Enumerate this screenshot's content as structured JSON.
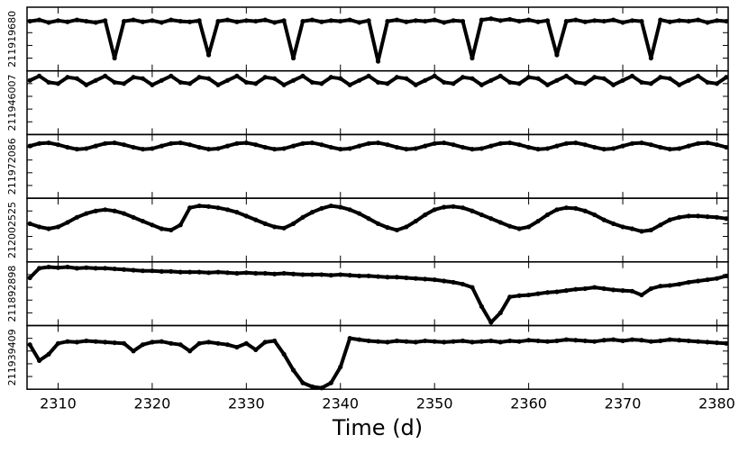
{
  "chart_data": [
    {
      "type": "line",
      "y_label": "211919680",
      "color": "#000000",
      "xlim": [
        2306.7,
        2381.2
      ],
      "ylim": [
        0,
        1
      ],
      "xticks": [
        2310,
        2320,
        2330,
        2340,
        2350,
        2360,
        2370,
        2380
      ],
      "yticks": [
        0.2,
        0.4,
        0.6,
        0.8
      ],
      "x": [
        2307,
        2308,
        2309,
        2310,
        2311,
        2312,
        2313,
        2314,
        2315,
        2316,
        2317,
        2318,
        2319,
        2320,
        2321,
        2322,
        2323,
        2324,
        2325,
        2326,
        2327,
        2328,
        2329,
        2330,
        2331,
        2332,
        2333,
        2334,
        2335,
        2336,
        2337,
        2338,
        2339,
        2340,
        2341,
        2342,
        2343,
        2344,
        2345,
        2346,
        2347,
        2348,
        2349,
        2350,
        2351,
        2352,
        2353,
        2354,
        2355,
        2356,
        2357,
        2358,
        2359,
        2360,
        2361,
        2362,
        2363,
        2364,
        2365,
        2366,
        2367,
        2368,
        2369,
        2370,
        2371,
        2372,
        2373,
        2374,
        2375,
        2376,
        2377,
        2378,
        2379,
        2380,
        2381
      ],
      "values": [
        0.78,
        0.8,
        0.76,
        0.79,
        0.77,
        0.8,
        0.78,
        0.76,
        0.79,
        0.2,
        0.78,
        0.8,
        0.77,
        0.79,
        0.76,
        0.8,
        0.78,
        0.77,
        0.79,
        0.25,
        0.78,
        0.8,
        0.77,
        0.79,
        0.78,
        0.8,
        0.76,
        0.79,
        0.2,
        0.78,
        0.8,
        0.77,
        0.79,
        0.78,
        0.8,
        0.76,
        0.79,
        0.15,
        0.78,
        0.8,
        0.77,
        0.79,
        0.78,
        0.8,
        0.76,
        0.79,
        0.78,
        0.2,
        0.8,
        0.82,
        0.79,
        0.81,
        0.78,
        0.8,
        0.77,
        0.79,
        0.25,
        0.78,
        0.8,
        0.77,
        0.79,
        0.78,
        0.8,
        0.76,
        0.79,
        0.78,
        0.2,
        0.8,
        0.77,
        0.79,
        0.78,
        0.8,
        0.76,
        0.79,
        0.78
      ]
    },
    {
      "type": "line",
      "y_label": "211946007",
      "color": "#000000",
      "xlim": [
        2306.7,
        2381.2
      ],
      "ylim": [
        0,
        1
      ],
      "xticks": [
        2310,
        2320,
        2330,
        2340,
        2350,
        2360,
        2370,
        2380
      ],
      "yticks": [
        0.2,
        0.4,
        0.6,
        0.8
      ],
      "x": [
        2307,
        2308,
        2309,
        2310,
        2311,
        2312,
        2313,
        2314,
        2315,
        2316,
        2317,
        2318,
        2319,
        2320,
        2321,
        2322,
        2323,
        2324,
        2325,
        2326,
        2327,
        2328,
        2329,
        2330,
        2331,
        2332,
        2333,
        2334,
        2335,
        2336,
        2337,
        2338,
        2339,
        2340,
        2341,
        2342,
        2343,
        2344,
        2345,
        2346,
        2347,
        2348,
        2349,
        2350,
        2351,
        2352,
        2353,
        2354,
        2355,
        2356,
        2357,
        2358,
        2359,
        2360,
        2361,
        2362,
        2363,
        2364,
        2365,
        2366,
        2367,
        2368,
        2369,
        2370,
        2371,
        2372,
        2373,
        2374,
        2375,
        2376,
        2377,
        2378,
        2379,
        2380,
        2381
      ],
      "values": [
        0.85,
        0.92,
        0.82,
        0.8,
        0.9,
        0.88,
        0.78,
        0.85,
        0.92,
        0.82,
        0.8,
        0.9,
        0.88,
        0.78,
        0.85,
        0.92,
        0.82,
        0.8,
        0.9,
        0.88,
        0.78,
        0.85,
        0.92,
        0.82,
        0.8,
        0.9,
        0.88,
        0.78,
        0.85,
        0.92,
        0.82,
        0.8,
        0.9,
        0.88,
        0.78,
        0.85,
        0.92,
        0.82,
        0.8,
        0.9,
        0.88,
        0.78,
        0.85,
        0.92,
        0.82,
        0.8,
        0.9,
        0.88,
        0.78,
        0.85,
        0.92,
        0.82,
        0.8,
        0.9,
        0.88,
        0.78,
        0.85,
        0.92,
        0.82,
        0.8,
        0.9,
        0.88,
        0.78,
        0.85,
        0.92,
        0.82,
        0.8,
        0.9,
        0.88,
        0.78,
        0.85,
        0.92,
        0.82,
        0.8,
        0.9
      ]
    },
    {
      "type": "line",
      "y_label": "211972086",
      "color": "#000000",
      "xlim": [
        2306.7,
        2381.2
      ],
      "ylim": [
        0,
        1
      ],
      "xticks": [
        2310,
        2320,
        2330,
        2340,
        2350,
        2360,
        2370,
        2380
      ],
      "yticks": [
        0.2,
        0.4,
        0.6,
        0.8
      ],
      "x": [
        2307,
        2308,
        2309,
        2310,
        2311,
        2312,
        2313,
        2314,
        2315,
        2316,
        2317,
        2318,
        2319,
        2320,
        2321,
        2322,
        2323,
        2324,
        2325,
        2326,
        2327,
        2328,
        2329,
        2330,
        2331,
        2332,
        2333,
        2334,
        2335,
        2336,
        2337,
        2338,
        2339,
        2340,
        2341,
        2342,
        2343,
        2344,
        2345,
        2346,
        2347,
        2348,
        2349,
        2350,
        2351,
        2352,
        2353,
        2354,
        2355,
        2356,
        2357,
        2358,
        2359,
        2360,
        2361,
        2362,
        2363,
        2364,
        2365,
        2366,
        2367,
        2368,
        2369,
        2370,
        2371,
        2372,
        2373,
        2374,
        2375,
        2376,
        2377,
        2378,
        2379,
        2380,
        2381
      ],
      "values": [
        0.82,
        0.86,
        0.87,
        0.84,
        0.8,
        0.77,
        0.78,
        0.82,
        0.86,
        0.87,
        0.84,
        0.8,
        0.77,
        0.78,
        0.82,
        0.86,
        0.87,
        0.84,
        0.8,
        0.77,
        0.78,
        0.82,
        0.86,
        0.87,
        0.84,
        0.8,
        0.77,
        0.78,
        0.82,
        0.86,
        0.87,
        0.84,
        0.8,
        0.77,
        0.78,
        0.82,
        0.86,
        0.87,
        0.84,
        0.8,
        0.77,
        0.78,
        0.82,
        0.86,
        0.87,
        0.84,
        0.8,
        0.77,
        0.78,
        0.82,
        0.86,
        0.87,
        0.84,
        0.8,
        0.77,
        0.78,
        0.82,
        0.86,
        0.87,
        0.84,
        0.8,
        0.77,
        0.78,
        0.82,
        0.86,
        0.87,
        0.84,
        0.8,
        0.77,
        0.78,
        0.82,
        0.86,
        0.87,
        0.84,
        0.8
      ]
    },
    {
      "type": "line",
      "y_label": "212002525",
      "color": "#000000",
      "xlim": [
        2306.7,
        2381.2
      ],
      "ylim": [
        0,
        1
      ],
      "xticks": [
        2310,
        2320,
        2330,
        2340,
        2350,
        2360,
        2370,
        2380
      ],
      "yticks": [
        0.2,
        0.4,
        0.6,
        0.8
      ],
      "x": [
        2307,
        2308,
        2309,
        2310,
        2311,
        2312,
        2313,
        2314,
        2315,
        2316,
        2317,
        2318,
        2319,
        2320,
        2321,
        2322,
        2323,
        2324,
        2325,
        2326,
        2327,
        2328,
        2329,
        2330,
        2331,
        2332,
        2333,
        2334,
        2335,
        2336,
        2337,
        2338,
        2339,
        2340,
        2341,
        2342,
        2343,
        2344,
        2345,
        2346,
        2347,
        2348,
        2349,
        2350,
        2351,
        2352,
        2353,
        2354,
        2355,
        2356,
        2357,
        2358,
        2359,
        2360,
        2361,
        2362,
        2363,
        2364,
        2365,
        2366,
        2367,
        2368,
        2369,
        2370,
        2371,
        2372,
        2373,
        2374,
        2375,
        2376,
        2377,
        2378,
        2379,
        2380,
        2381
      ],
      "values": [
        0.6,
        0.55,
        0.52,
        0.55,
        0.62,
        0.7,
        0.76,
        0.8,
        0.82,
        0.8,
        0.76,
        0.7,
        0.64,
        0.58,
        0.52,
        0.5,
        0.58,
        0.85,
        0.88,
        0.87,
        0.85,
        0.82,
        0.78,
        0.72,
        0.66,
        0.6,
        0.55,
        0.53,
        0.6,
        0.7,
        0.78,
        0.84,
        0.88,
        0.86,
        0.82,
        0.76,
        0.68,
        0.6,
        0.54,
        0.5,
        0.55,
        0.64,
        0.74,
        0.82,
        0.86,
        0.87,
        0.85,
        0.8,
        0.74,
        0.68,
        0.62,
        0.56,
        0.52,
        0.55,
        0.64,
        0.74,
        0.82,
        0.85,
        0.84,
        0.8,
        0.74,
        0.66,
        0.6,
        0.55,
        0.52,
        0.48,
        0.5,
        0.58,
        0.66,
        0.7,
        0.72,
        0.72,
        0.71,
        0.7,
        0.68
      ]
    },
    {
      "type": "line",
      "y_label": "211892898",
      "color": "#000000",
      "xlim": [
        2306.7,
        2381.2
      ],
      "ylim": [
        0,
        1
      ],
      "xticks": [
        2310,
        2320,
        2330,
        2340,
        2350,
        2360,
        2370,
        2380
      ],
      "yticks": [
        0.2,
        0.4,
        0.6,
        0.8
      ],
      "x": [
        2307,
        2308,
        2309,
        2310,
        2311,
        2312,
        2313,
        2314,
        2315,
        2316,
        2317,
        2318,
        2319,
        2320,
        2321,
        2322,
        2323,
        2324,
        2325,
        2326,
        2327,
        2328,
        2329,
        2330,
        2331,
        2332,
        2333,
        2334,
        2335,
        2336,
        2337,
        2338,
        2339,
        2340,
        2341,
        2342,
        2343,
        2344,
        2345,
        2346,
        2347,
        2348,
        2349,
        2350,
        2351,
        2352,
        2353,
        2354,
        2355,
        2356,
        2357,
        2358,
        2359,
        2360,
        2361,
        2362,
        2363,
        2364,
        2365,
        2366,
        2367,
        2368,
        2369,
        2370,
        2371,
        2372,
        2373,
        2374,
        2375,
        2376,
        2377,
        2378,
        2379,
        2380,
        2381
      ],
      "values": [
        0.75,
        0.9,
        0.92,
        0.91,
        0.92,
        0.9,
        0.91,
        0.9,
        0.9,
        0.89,
        0.88,
        0.87,
        0.86,
        0.86,
        0.85,
        0.85,
        0.84,
        0.84,
        0.84,
        0.83,
        0.84,
        0.83,
        0.82,
        0.83,
        0.82,
        0.82,
        0.81,
        0.82,
        0.81,
        0.8,
        0.8,
        0.8,
        0.79,
        0.8,
        0.79,
        0.78,
        0.78,
        0.77,
        0.76,
        0.76,
        0.75,
        0.74,
        0.73,
        0.72,
        0.7,
        0.68,
        0.65,
        0.6,
        0.3,
        0.05,
        0.2,
        0.45,
        0.47,
        0.48,
        0.5,
        0.52,
        0.53,
        0.55,
        0.57,
        0.58,
        0.6,
        0.58,
        0.56,
        0.55,
        0.54,
        0.48,
        0.58,
        0.62,
        0.63,
        0.65,
        0.68,
        0.7,
        0.72,
        0.74,
        0.78
      ]
    },
    {
      "type": "line",
      "y_label": "211939409",
      "x_label": "Time (d)",
      "color": "#000000",
      "xlim": [
        2306.7,
        2381.2
      ],
      "ylim": [
        0,
        1
      ],
      "xticks": [
        2310,
        2320,
        2330,
        2340,
        2350,
        2360,
        2370,
        2380
      ],
      "yticks": [
        0.2,
        0.4,
        0.6,
        0.8
      ],
      "x": [
        2307,
        2308,
        2309,
        2310,
        2311,
        2312,
        2313,
        2314,
        2315,
        2316,
        2317,
        2318,
        2319,
        2320,
        2321,
        2322,
        2323,
        2324,
        2325,
        2326,
        2327,
        2328,
        2329,
        2330,
        2331,
        2332,
        2333,
        2334,
        2335,
        2336,
        2337,
        2338,
        2339,
        2340,
        2341,
        2342,
        2343,
        2344,
        2345,
        2346,
        2347,
        2348,
        2349,
        2350,
        2351,
        2352,
        2353,
        2354,
        2355,
        2356,
        2357,
        2358,
        2359,
        2360,
        2361,
        2362,
        2363,
        2364,
        2365,
        2366,
        2367,
        2368,
        2369,
        2370,
        2371,
        2372,
        2373,
        2374,
        2375,
        2376,
        2377,
        2378,
        2379,
        2380,
        2381
      ],
      "values": [
        0.7,
        0.45,
        0.55,
        0.72,
        0.75,
        0.74,
        0.76,
        0.75,
        0.74,
        0.73,
        0.72,
        0.6,
        0.7,
        0.74,
        0.75,
        0.72,
        0.7,
        0.6,
        0.72,
        0.74,
        0.72,
        0.7,
        0.66,
        0.72,
        0.62,
        0.74,
        0.76,
        0.55,
        0.3,
        0.1,
        0.04,
        0.02,
        0.1,
        0.35,
        0.8,
        0.78,
        0.76,
        0.75,
        0.74,
        0.76,
        0.75,
        0.74,
        0.76,
        0.75,
        0.74,
        0.75,
        0.76,
        0.74,
        0.75,
        0.76,
        0.74,
        0.76,
        0.75,
        0.77,
        0.76,
        0.75,
        0.76,
        0.78,
        0.77,
        0.76,
        0.75,
        0.77,
        0.78,
        0.76,
        0.78,
        0.77,
        0.75,
        0.76,
        0.78,
        0.77,
        0.76,
        0.75,
        0.74,
        0.73,
        0.72
      ]
    }
  ]
}
